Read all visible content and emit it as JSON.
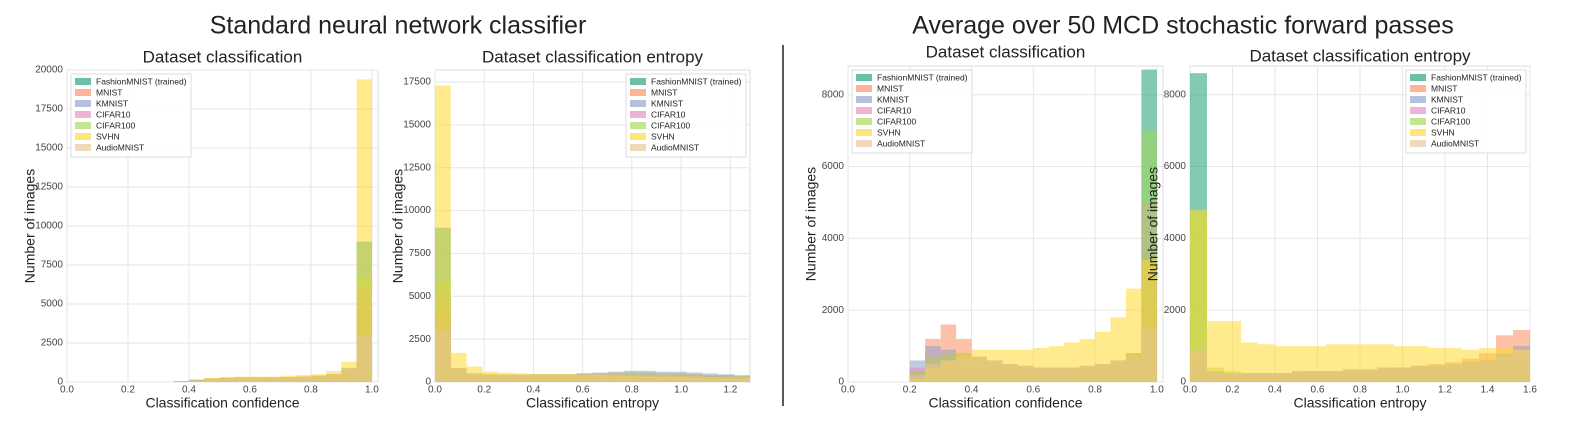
{
  "headings": [
    "Standard neural network classifier",
    "Average over 50 MCD stochastic forward passes"
  ],
  "chart_data": [
    {
      "type": "histogram",
      "title": "Dataset classification",
      "xlabel": "Classification confidence",
      "ylabel": "Number of images",
      "legend": "upper left",
      "grid": true,
      "xlim": [
        0,
        1.02
      ],
      "ylim": [
        0,
        20000
      ],
      "xticks": [
        {
          "value": 0,
          "label": "0.0"
        },
        0.2,
        0.4,
        0.6,
        0.8,
        {
          "value": 1,
          "label": "1.0"
        }
      ],
      "yticks": [
        0,
        2500,
        5000,
        7500,
        10000,
        12500,
        15000,
        17500,
        20000
      ],
      "bins": [
        0,
        0.05,
        0.1,
        0.15,
        0.2,
        0.25,
        0.3,
        0.35,
        0.4,
        0.45,
        0.5,
        0.55,
        0.6,
        0.65,
        0.7,
        0.75,
        0.8,
        0.85,
        0.9,
        0.95,
        1.0
      ],
      "series": [
        {
          "name": "FashionMNIST (trained)",
          "color": "#1b9e77",
          "values": [
            0,
            0,
            0,
            0,
            0,
            0,
            0,
            0,
            50,
            100,
            150,
            200,
            250,
            250,
            300,
            300,
            350,
            450,
            700,
            9000
          ]
        },
        {
          "name": "MNIST",
          "color": "#fc8d62",
          "values": [
            0,
            0,
            0,
            0,
            0,
            0,
            0,
            50,
            150,
            250,
            300,
            300,
            300,
            300,
            320,
            350,
            400,
            500,
            800,
            4500
          ]
        },
        {
          "name": "KMNIST",
          "color": "#8da0cb",
          "values": [
            0,
            0,
            0,
            0,
            0,
            0,
            0,
            50,
            150,
            200,
            250,
            300,
            300,
            300,
            300,
            350,
            400,
            500,
            800,
            5000
          ]
        },
        {
          "name": "CIFAR10",
          "color": "#e78ac3",
          "values": [
            0,
            0,
            0,
            0,
            0,
            0,
            0,
            0,
            100,
            200,
            250,
            300,
            300,
            300,
            300,
            350,
            400,
            500,
            900,
            6000
          ]
        },
        {
          "name": "CIFAR100",
          "color": "#a6d854",
          "values": [
            0,
            0,
            0,
            0,
            0,
            0,
            0,
            0,
            100,
            200,
            250,
            300,
            300,
            300,
            300,
            350,
            400,
            500,
            900,
            6700
          ]
        },
        {
          "name": "SVHN",
          "color": "#ffd92f",
          "values": [
            0,
            0,
            0,
            0,
            0,
            0,
            0,
            0,
            100,
            250,
            300,
            350,
            350,
            350,
            400,
            450,
            500,
            700,
            1300,
            19400
          ]
        },
        {
          "name": "AudioMNIST",
          "color": "#e5c494",
          "values": [
            0,
            0,
            0,
            0,
            0,
            0,
            0,
            0,
            50,
            150,
            200,
            250,
            300,
            300,
            300,
            350,
            400,
            500,
            900,
            3000
          ]
        }
      ]
    },
    {
      "type": "histogram",
      "title": "Dataset classification entropy",
      "xlabel": "Classification entropy",
      "ylabel": "Number of images",
      "legend": "upper right",
      "grid": true,
      "xlim": [
        0,
        1.28
      ],
      "ylim": [
        0,
        18200
      ],
      "xticks": [
        {
          "value": 0,
          "label": "0.0"
        },
        0.2,
        0.4,
        0.6,
        0.8,
        {
          "value": 1,
          "label": "1.0"
        },
        1.2
      ],
      "yticks": [
        0,
        2500,
        5000,
        7500,
        10000,
        12500,
        15000,
        17500
      ],
      "bins": [
        0,
        0.064,
        0.128,
        0.192,
        0.256,
        0.32,
        0.384,
        0.448,
        0.512,
        0.576,
        0.64,
        0.704,
        0.768,
        0.832,
        0.896,
        0.96,
        1.024,
        1.088,
        1.152,
        1.216,
        1.28
      ],
      "series": [
        {
          "name": "FashionMNIST (trained)",
          "color": "#1b9e77",
          "values": [
            9000,
            700,
            400,
            300,
            300,
            300,
            300,
            250,
            250,
            250,
            200,
            200,
            200,
            200,
            150,
            150,
            150,
            100,
            100,
            100
          ]
        },
        {
          "name": "MNIST",
          "color": "#fc8d62",
          "values": [
            4000,
            800,
            500,
            450,
            400,
            400,
            400,
            400,
            400,
            450,
            450,
            450,
            450,
            450,
            400,
            400,
            400,
            350,
            350,
            300
          ]
        },
        {
          "name": "KMNIST",
          "color": "#8da0cb",
          "values": [
            3500,
            800,
            500,
            450,
            450,
            450,
            450,
            450,
            450,
            500,
            550,
            600,
            650,
            650,
            600,
            600,
            550,
            500,
            450,
            400
          ]
        },
        {
          "name": "CIFAR10",
          "color": "#e78ac3",
          "values": [
            5000,
            800,
            500,
            400,
            400,
            400,
            450,
            450,
            450,
            500,
            500,
            550,
            550,
            550,
            500,
            500,
            450,
            400,
            400,
            350
          ]
        },
        {
          "name": "CIFAR100",
          "color": "#a6d854",
          "values": [
            5800,
            800,
            500,
            400,
            400,
            400,
            450,
            450,
            450,
            500,
            500,
            550,
            550,
            550,
            500,
            500,
            450,
            400,
            400,
            350
          ]
        },
        {
          "name": "SVHN",
          "color": "#ffd92f",
          "values": [
            17300,
            1700,
            900,
            600,
            550,
            500,
            450,
            450,
            450,
            400,
            400,
            350,
            350,
            300,
            300,
            300,
            250,
            250,
            200,
            200
          ]
        },
        {
          "name": "AudioMNIST",
          "color": "#e5c494",
          "values": [
            3000,
            700,
            500,
            400,
            400,
            400,
            400,
            400,
            400,
            450,
            450,
            450,
            400,
            400,
            400,
            350,
            350,
            300,
            300,
            300
          ]
        }
      ]
    },
    {
      "type": "histogram",
      "title": "Dataset classification",
      "xlabel": "Classification confidence",
      "ylabel": "Number of images",
      "legend": "upper left",
      "grid": true,
      "xlim": [
        0,
        1.02
      ],
      "ylim": [
        0,
        8800
      ],
      "xticks": [
        {
          "value": 0,
          "label": "0.0"
        },
        0.2,
        0.4,
        0.6,
        0.8,
        {
          "value": 1,
          "label": "1.0"
        }
      ],
      "yticks": [
        0,
        2000,
        4000,
        6000,
        8000
      ],
      "bins": [
        0,
        0.05,
        0.1,
        0.15,
        0.2,
        0.25,
        0.3,
        0.35,
        0.4,
        0.45,
        0.5,
        0.55,
        0.6,
        0.65,
        0.7,
        0.75,
        0.8,
        0.85,
        0.9,
        0.95,
        1.0
      ],
      "series": [
        {
          "name": "FashionMNIST (trained)",
          "color": "#1b9e77",
          "values": [
            0,
            0,
            0,
            0,
            100,
            200,
            300,
            350,
            350,
            350,
            300,
            300,
            300,
            300,
            350,
            400,
            450,
            550,
            800,
            8700
          ]
        },
        {
          "name": "MNIST",
          "color": "#fc8d62",
          "values": [
            0,
            0,
            0,
            0,
            300,
            1200,
            1600,
            1200,
            700,
            500,
            400,
            350,
            350,
            350,
            350,
            350,
            400,
            500,
            700,
            2500
          ]
        },
        {
          "name": "KMNIST",
          "color": "#8da0cb",
          "values": [
            0,
            0,
            0,
            0,
            600,
            1000,
            900,
            800,
            700,
            600,
            500,
            450,
            400,
            400,
            400,
            450,
            500,
            600,
            800,
            3000
          ]
        },
        {
          "name": "CIFAR10",
          "color": "#e78ac3",
          "values": [
            0,
            0,
            0,
            0,
            400,
            700,
            800,
            800,
            700,
            600,
            500,
            450,
            400,
            400,
            400,
            450,
            500,
            600,
            800,
            5000
          ]
        },
        {
          "name": "CIFAR100",
          "color": "#a6d854",
          "values": [
            0,
            0,
            0,
            0,
            300,
            700,
            800,
            800,
            700,
            600,
            500,
            450,
            400,
            400,
            400,
            450,
            500,
            600,
            800,
            7000
          ]
        },
        {
          "name": "SVHN",
          "color": "#ffd92f",
          "values": [
            0,
            0,
            0,
            0,
            100,
            400,
            600,
            800,
            900,
            900,
            900,
            900,
            950,
            1000,
            1100,
            1200,
            1400,
            1800,
            2600,
            3400
          ]
        },
        {
          "name": "AudioMNIST",
          "color": "#e5c494",
          "values": [
            0,
            0,
            0,
            0,
            200,
            500,
            600,
            700,
            700,
            600,
            500,
            450,
            400,
            400,
            400,
            450,
            500,
            600,
            700,
            1500
          ]
        }
      ]
    },
    {
      "type": "histogram",
      "title": "Dataset classification entropy",
      "xlabel": "Classification entropy",
      "ylabel": "Number of images",
      "legend": "upper right",
      "grid": true,
      "xlim": [
        0,
        1.6
      ],
      "ylim": [
        0,
        8800
      ],
      "xticks": [
        {
          "value": 0,
          "label": "0.0"
        },
        0.2,
        0.4,
        0.6,
        0.8,
        {
          "value": 1,
          "label": "1.0"
        },
        1.2,
        1.4,
        1.6
      ],
      "yticks": [
        0,
        2000,
        4000,
        6000,
        8000
      ],
      "bins": [
        0,
        0.08,
        0.16,
        0.24,
        0.32,
        0.4,
        0.48,
        0.56,
        0.64,
        0.72,
        0.8,
        0.88,
        0.96,
        1.04,
        1.12,
        1.2,
        1.28,
        1.36,
        1.44,
        1.52,
        1.6
      ],
      "series": [
        {
          "name": "FashionMNIST (trained)",
          "color": "#1b9e77",
          "values": [
            8600,
            300,
            200,
            200,
            200,
            200,
            250,
            250,
            250,
            300,
            300,
            300,
            300,
            350,
            350,
            400,
            400,
            450,
            500,
            600
          ]
        },
        {
          "name": "MNIST",
          "color": "#fc8d62",
          "values": [
            800,
            200,
            200,
            200,
            200,
            250,
            250,
            300,
            300,
            300,
            350,
            350,
            400,
            450,
            500,
            550,
            650,
            800,
            1300,
            1450
          ]
        },
        {
          "name": "KMNIST",
          "color": "#8da0cb",
          "values": [
            600,
            300,
            250,
            250,
            250,
            250,
            300,
            300,
            300,
            350,
            350,
            400,
            400,
            450,
            450,
            500,
            550,
            600,
            800,
            1000
          ]
        },
        {
          "name": "CIFAR10",
          "color": "#e78ac3",
          "values": [
            600,
            300,
            250,
            250,
            250,
            250,
            300,
            300,
            300,
            350,
            350,
            400,
            400,
            450,
            450,
            500,
            500,
            550,
            700,
            900
          ]
        },
        {
          "name": "CIFAR100",
          "color": "#a6d854",
          "values": [
            4700,
            400,
            300,
            250,
            250,
            250,
            300,
            300,
            300,
            350,
            350,
            400,
            400,
            450,
            450,
            500,
            500,
            550,
            700,
            900
          ]
        },
        {
          "name": "SVHN",
          "color": "#ffd92f",
          "values": [
            4800,
            1700,
            1700,
            1100,
            1050,
            1000,
            1000,
            1000,
            1050,
            1050,
            1050,
            1050,
            1000,
            1000,
            950,
            950,
            900,
            950,
            950,
            900
          ]
        },
        {
          "name": "AudioMNIST",
          "color": "#e5c494",
          "values": [
            900,
            300,
            250,
            250,
            250,
            250,
            300,
            300,
            300,
            350,
            350,
            400,
            400,
            450,
            450,
            500,
            500,
            550,
            700,
            900
          ]
        }
      ]
    }
  ]
}
